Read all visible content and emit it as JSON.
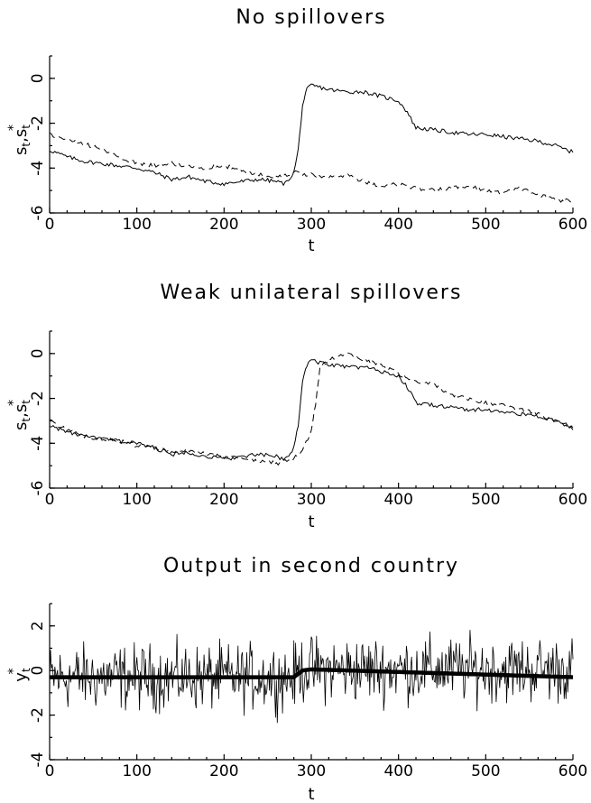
{
  "chart_data": [
    {
      "type": "line",
      "title": "No spillovers",
      "xlabel": "t",
      "ylabel": "s_t, s_t*",
      "xlim": [
        0,
        600
      ],
      "ylim": [
        -6,
        1
      ],
      "xticks": [
        "0",
        "100",
        "200",
        "300",
        "400",
        "500",
        "600"
      ],
      "yticks": [
        "0",
        "-2",
        "-4",
        "-6"
      ],
      "series": [
        {
          "style": "solid",
          "x": [
            0,
            20,
            40,
            60,
            80,
            100,
            120,
            140,
            160,
            180,
            200,
            220,
            240,
            260,
            270,
            280,
            285,
            290,
            295,
            300,
            320,
            340,
            360,
            380,
            400,
            410,
            420,
            440,
            460,
            480,
            500,
            520,
            540,
            560,
            580,
            600
          ],
          "y": [
            -3.2,
            -3.5,
            -3.7,
            -3.8,
            -3.9,
            -4.0,
            -4.2,
            -4.5,
            -4.4,
            -4.6,
            -4.7,
            -4.6,
            -4.5,
            -4.6,
            -4.7,
            -4.2,
            -3.2,
            -1.2,
            -0.5,
            -0.3,
            -0.5,
            -0.6,
            -0.6,
            -0.8,
            -1.0,
            -1.5,
            -2.2,
            -2.3,
            -2.4,
            -2.5,
            -2.5,
            -2.6,
            -2.7,
            -2.8,
            -3.0,
            -3.3
          ]
        },
        {
          "style": "dashed",
          "x": [
            0,
            20,
            40,
            60,
            80,
            100,
            120,
            140,
            160,
            180,
            200,
            220,
            240,
            260,
            280,
            300,
            320,
            340,
            360,
            380,
            400,
            420,
            440,
            460,
            480,
            500,
            520,
            540,
            560,
            580,
            600
          ],
          "y": [
            -2.5,
            -2.7,
            -2.9,
            -3.2,
            -3.5,
            -3.8,
            -3.9,
            -3.8,
            -3.9,
            -4.0,
            -3.9,
            -4.1,
            -4.3,
            -4.4,
            -4.2,
            -4.3,
            -4.4,
            -4.3,
            -4.6,
            -4.8,
            -4.7,
            -4.9,
            -5.0,
            -4.9,
            -4.8,
            -5.0,
            -5.1,
            -4.9,
            -5.2,
            -5.4,
            -5.5
          ]
        }
      ]
    },
    {
      "type": "line",
      "title": "Weak unilateral spillovers",
      "xlabel": "t",
      "ylabel": "s_t, s_t*",
      "xlim": [
        0,
        600
      ],
      "ylim": [
        -6,
        1
      ],
      "xticks": [
        "0",
        "100",
        "200",
        "300",
        "400",
        "500",
        "600"
      ],
      "yticks": [
        "0",
        "-2",
        "-4",
        "-6"
      ],
      "series": [
        {
          "style": "solid",
          "x": [
            0,
            20,
            40,
            60,
            80,
            100,
            120,
            140,
            160,
            180,
            200,
            220,
            240,
            260,
            270,
            280,
            285,
            290,
            295,
            300,
            320,
            340,
            360,
            380,
            400,
            410,
            420,
            440,
            460,
            480,
            500,
            520,
            540,
            560,
            580,
            600
          ],
          "y": [
            -3.2,
            -3.5,
            -3.7,
            -3.8,
            -3.9,
            -4.0,
            -4.2,
            -4.5,
            -4.4,
            -4.6,
            -4.7,
            -4.6,
            -4.5,
            -4.6,
            -4.7,
            -4.2,
            -3.2,
            -1.2,
            -0.5,
            -0.3,
            -0.5,
            -0.6,
            -0.6,
            -0.8,
            -1.0,
            -1.5,
            -2.2,
            -2.3,
            -2.4,
            -2.5,
            -2.5,
            -2.6,
            -2.7,
            -2.8,
            -3.0,
            -3.3
          ]
        },
        {
          "style": "dashed",
          "x": [
            0,
            20,
            40,
            60,
            80,
            100,
            120,
            140,
            160,
            180,
            200,
            220,
            240,
            260,
            280,
            290,
            300,
            305,
            310,
            320,
            340,
            360,
            380,
            400,
            420,
            440,
            460,
            480,
            500,
            520,
            540,
            560,
            580,
            600
          ],
          "y": [
            -3.0,
            -3.4,
            -3.7,
            -3.8,
            -3.9,
            -4.1,
            -4.2,
            -4.4,
            -4.3,
            -4.5,
            -4.6,
            -4.7,
            -4.8,
            -4.9,
            -4.7,
            -4.3,
            -3.5,
            -2.2,
            -0.6,
            -0.3,
            0.0,
            -0.3,
            -0.5,
            -0.9,
            -1.2,
            -1.4,
            -1.8,
            -2.0,
            -2.2,
            -2.3,
            -2.5,
            -2.7,
            -3.0,
            -3.4
          ]
        }
      ]
    },
    {
      "type": "line",
      "title": "Output in second country",
      "xlabel": "t",
      "ylabel": "y_t*",
      "xlim": [
        0,
        600
      ],
      "ylim": [
        -4,
        3
      ],
      "xticks": [
        "0",
        "100",
        "200",
        "300",
        "400",
        "500",
        "600"
      ],
      "yticks": [
        "2",
        "0",
        "-2",
        "-4"
      ],
      "noise": {
        "low_level": -0.3,
        "high_level": 0.05,
        "switch_x": 285,
        "amplitude": 0.9
      },
      "series": [
        {
          "style": "noisy-thin"
        },
        {
          "style": "thick",
          "x": [
            0,
            280,
            290,
            300,
            600
          ],
          "y": [
            -0.3,
            -0.3,
            0.0,
            0.05,
            -0.3
          ]
        }
      ]
    }
  ]
}
